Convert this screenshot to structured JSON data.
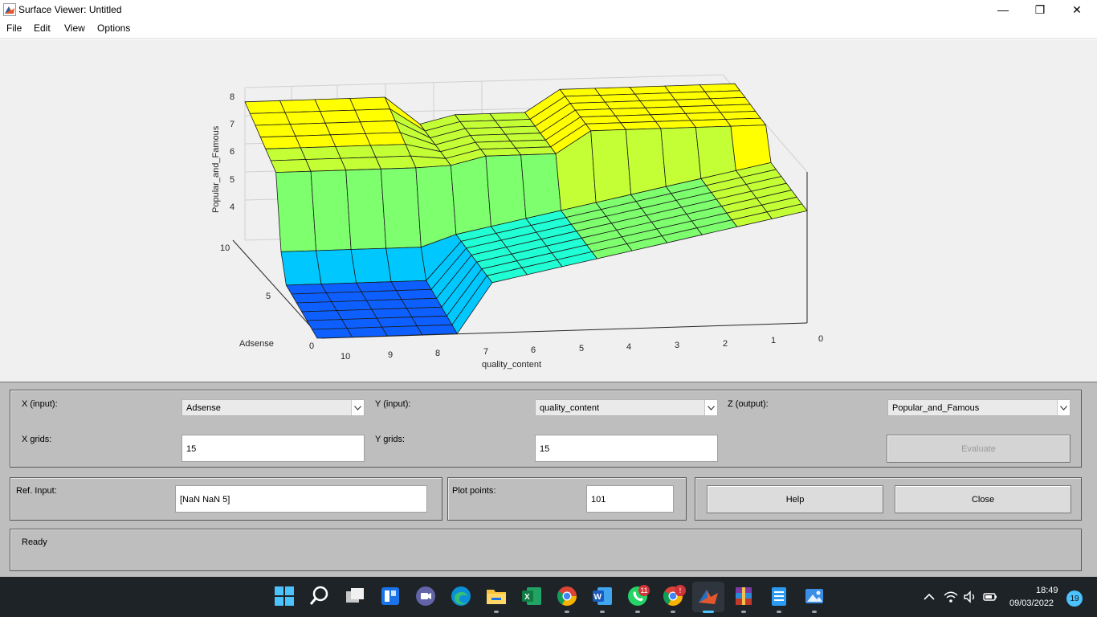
{
  "window": {
    "title": "Surface Viewer: Untitled",
    "minimize_glyph": "—",
    "maximize_glyph": "❐",
    "close_glyph": "✕"
  },
  "menu": {
    "items": [
      "File",
      "Edit",
      "View",
      "Options"
    ]
  },
  "plot": {
    "z_axis_label": "Popular_and_Famous",
    "x_axis_label": "quality_content",
    "y_axis_label": "Adsense",
    "z_ticks": [
      "4",
      "5",
      "6",
      "7",
      "8"
    ],
    "x_ticks": [
      "10",
      "9",
      "8",
      "7",
      "6",
      "5",
      "4",
      "3",
      "2",
      "1",
      "0"
    ],
    "y_ticks": [
      "0",
      "5",
      "10"
    ],
    "colormap": [
      "#0d60ff",
      "#00c8ff",
      "#21ffd4",
      "#7dff6e",
      "#c4ff36",
      "#ffff00"
    ]
  },
  "controls": {
    "x_input_label": "X (input):",
    "x_input_value": "Adsense",
    "y_input_label": "Y (input):",
    "y_input_value": "quality_content",
    "z_output_label": "Z (output):",
    "z_output_value": "Popular_and_Famous",
    "x_grids_label": "X grids:",
    "x_grids_value": "15",
    "y_grids_label": "Y grids:",
    "y_grids_value": "15",
    "evaluate_label": "Evaluate",
    "ref_input_label": "Ref. Input:",
    "ref_input_value": "[NaN NaN 5]",
    "plot_points_label": "Plot points:",
    "plot_points_value": "101",
    "help_label": "Help",
    "close_label": "Close",
    "status": "Ready"
  },
  "taskbar": {
    "apps": [
      "start-icon",
      "search-icon",
      "task-view-icon",
      "widgets-icon",
      "teams-chat-icon",
      "edge-icon",
      "file-explorer-icon",
      "excel-icon",
      "chrome-icon",
      "word-icon",
      "whatsapp-icon",
      "chrome-profile-icon",
      "matlab-icon",
      "winrar-icon",
      "notepad-icon",
      "photos-icon"
    ],
    "whatsapp_badge": "11",
    "chrome_badge": "!",
    "time": "18:49",
    "date": "09/03/2022",
    "notification_count": "19"
  }
}
